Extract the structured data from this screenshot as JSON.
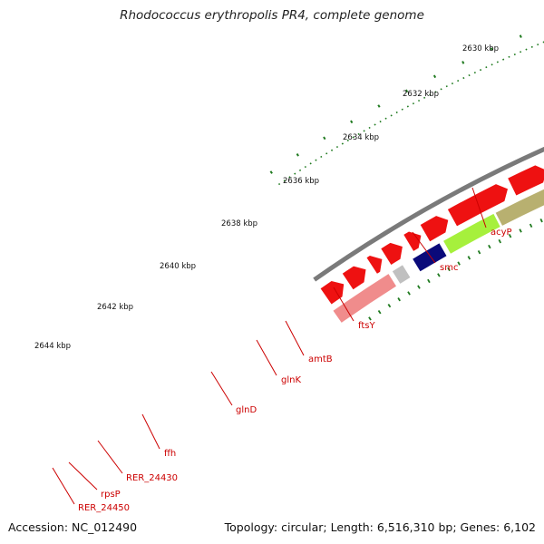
{
  "title": "Rhodococcus erythropolis PR4, complete genome",
  "accession": "Accession: NC_012490",
  "topology": "Topology: circular; Length: 6,516,310 bp; Genes: 6,102",
  "colors": {
    "backbone": "#7a7a7a",
    "cds_arrow": "#ee1111",
    "ticks": "#1f7a1f",
    "label_line": "#cc0000",
    "label_text": "#cc0000"
  },
  "scale_labels": [
    "2630 kbp",
    "2632 kbp",
    "2634 kbp",
    "2636 kbp",
    "2638 kbp",
    "2640 kbp",
    "2642 kbp",
    "2644 kbp"
  ],
  "genes": [
    {
      "name": "acyP",
      "color": "#19e3f0"
    },
    {
      "name": "smc",
      "color": "#f0e6a0"
    },
    {
      "name": "ftsY",
      "color": "#a6f03c"
    },
    {
      "name": "amtB",
      "color": "#5a4a9a"
    },
    {
      "name": "glnK",
      "color": "#4a86b8"
    },
    {
      "name": "glnD",
      "color": "#b8b070"
    },
    {
      "name": "ffh",
      "color": "#a6f03c"
    },
    {
      "name": "RER_24430",
      "color": "#0a0a7a"
    },
    {
      "name": "rpsP",
      "color": "#c0c0c0"
    },
    {
      "name": "RER_24450",
      "color": "#f08c8c"
    }
  ]
}
